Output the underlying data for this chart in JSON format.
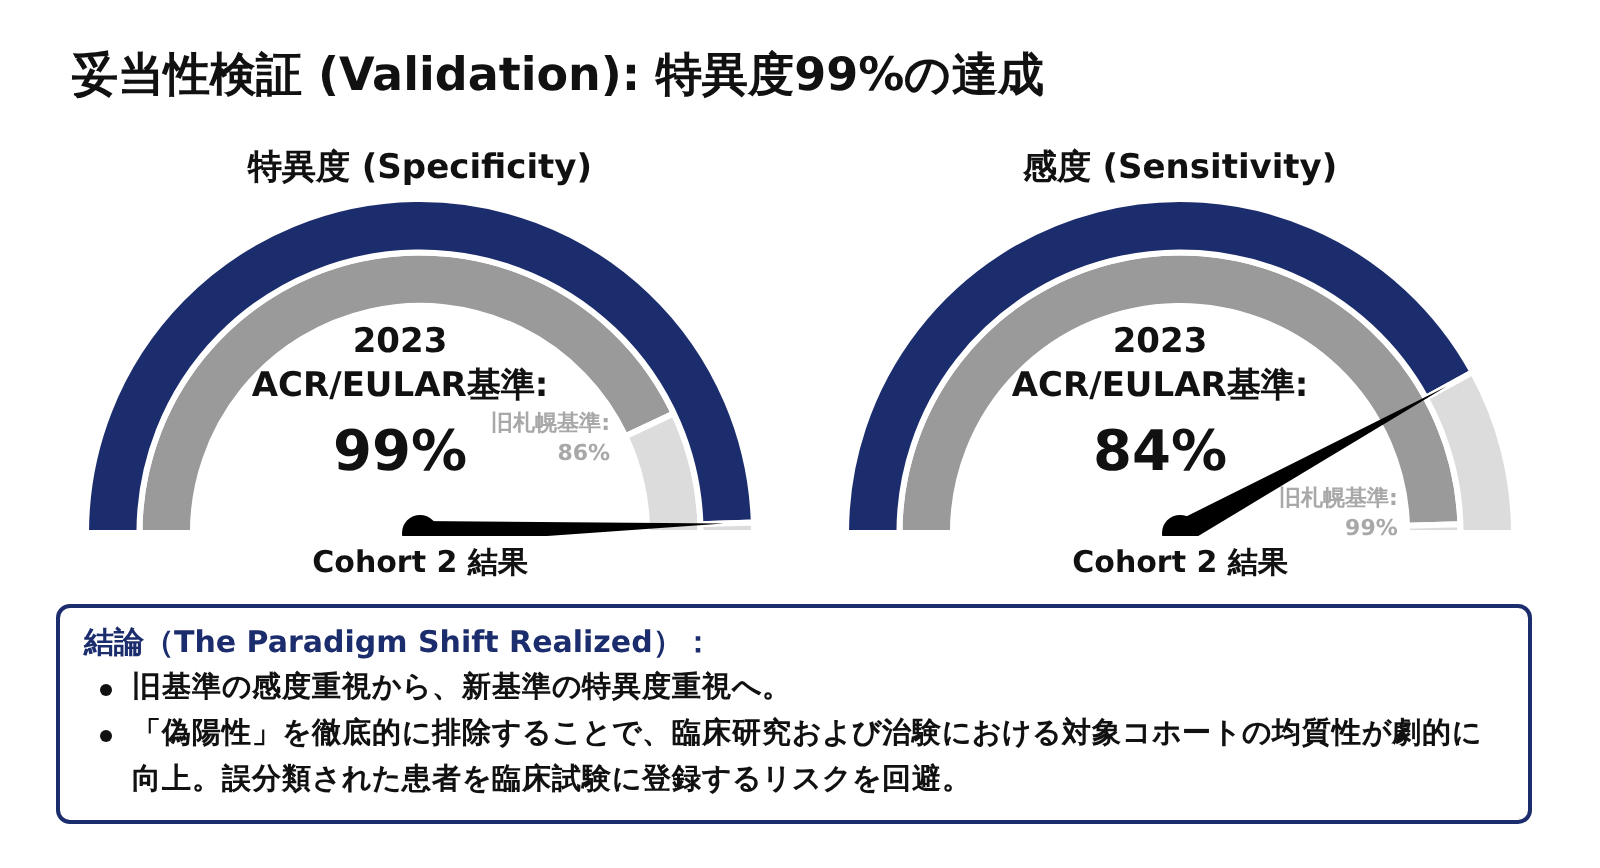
{
  "chart_data": [
    {
      "type": "other",
      "title": "妥当性検証 (Validation): 特異度99%の達成"
    },
    {
      "type": "donut",
      "title": "特異度 (Specificity)",
      "xlabel": "Cohort 2 結果",
      "categories": [
        null,
        null
      ],
      "series": [
        {
          "name": "2023 ACR/EULAR基準:",
          "colors": [
            "#1c2d6e",
            "#dcdcdc"
          ],
          "values": [
            99,
            1
          ],
          "value_labels": [
            "99%",
            null
          ]
        },
        {
          "name": "旧札幌基準:",
          "colors": [
            "#9a9a9a",
            "#dcdcdc"
          ],
          "values": [
            86,
            14
          ],
          "value_labels": [
            "86%",
            null
          ]
        }
      ]
    },
    {
      "type": "donut",
      "title": "感度 (Sensitivity)",
      "xlabel": "Cohort 2 結果",
      "categories": [
        null,
        null
      ],
      "series": [
        {
          "name": "2023 ACR/EULAR基準:",
          "colors": [
            "#1c2d6e",
            "#dcdcdc"
          ],
          "values": [
            84,
            16
          ],
          "value_labels": [
            "84%",
            null
          ]
        },
        {
          "name": "旧札幌基準:",
          "colors": [
            "#9a9a9a",
            "#dcdcdc"
          ],
          "values": [
            99,
            1
          ],
          "value_labels": [
            "99%",
            null
          ]
        }
      ]
    },
    {
      "type": "other",
      "title": "結論（The Paradigm Shift Realized）：",
      "annotations": [
        "旧基準の感度重視から、新基準の特異度重視へ。",
        "「偽陽性」を徹底的に排除することで、臨床研究および治験における対象コホートの均質性が劇的に向上。誤分類された患者を臨床試験に登録するリスクを回避。"
      ]
    }
  ]
}
